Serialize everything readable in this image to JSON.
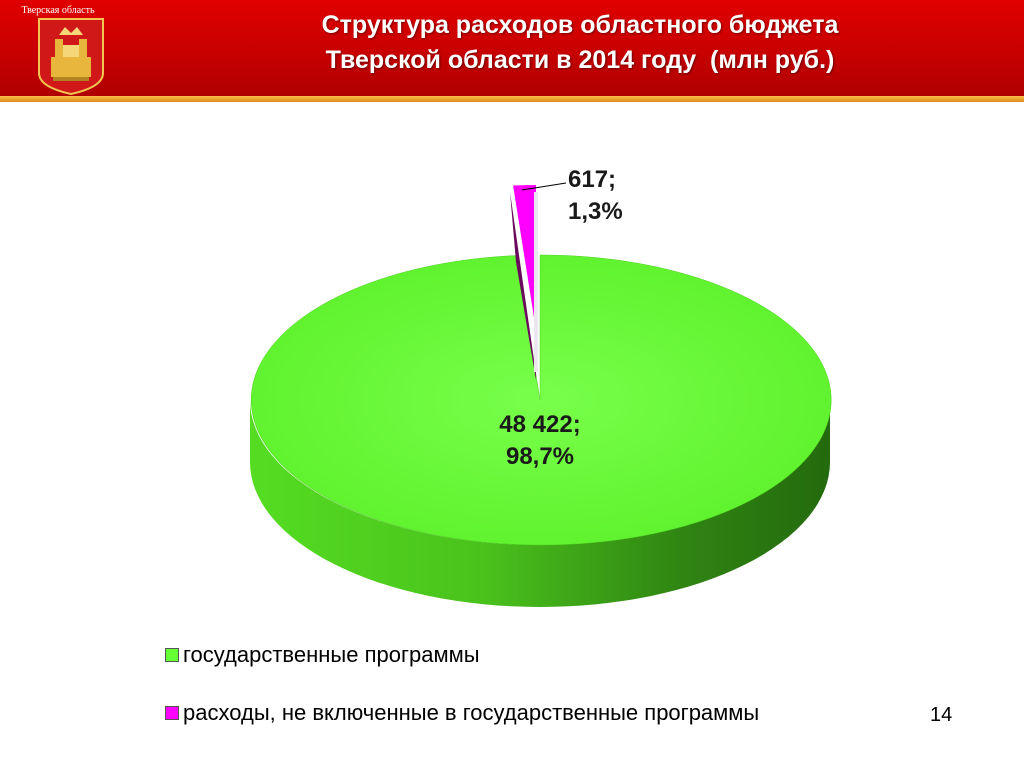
{
  "header": {
    "region_label": "Тверская область",
    "title_line1": "Структура расходов областного бюджета",
    "title_line2": "Тверской области в 2014 году  (млн руб.)",
    "coat_of_arms_icon": "tver-coat-of-arms-icon",
    "colors": {
      "banner": "#d00000",
      "stripe": "#f0a830"
    }
  },
  "chart_data": {
    "type": "pie",
    "title": "Структура расходов областного бюджета Тверской области в 2014 году  (млн руб.)",
    "three_d": true,
    "legend_position": "bottom",
    "slices": [
      {
        "name": "государственные программы",
        "value": 48422,
        "value_label": "48 422;",
        "percent": 98.7,
        "percent_label": "98,7%",
        "color": "#66ff33"
      },
      {
        "name": "расходы, не включенные в государственные программы",
        "value": 617,
        "value_label": "617;",
        "percent": 1.3,
        "percent_label": "1,3%",
        "color": "#ff00ff",
        "exploded": true
      }
    ]
  },
  "footer": {
    "page_number": "14"
  }
}
